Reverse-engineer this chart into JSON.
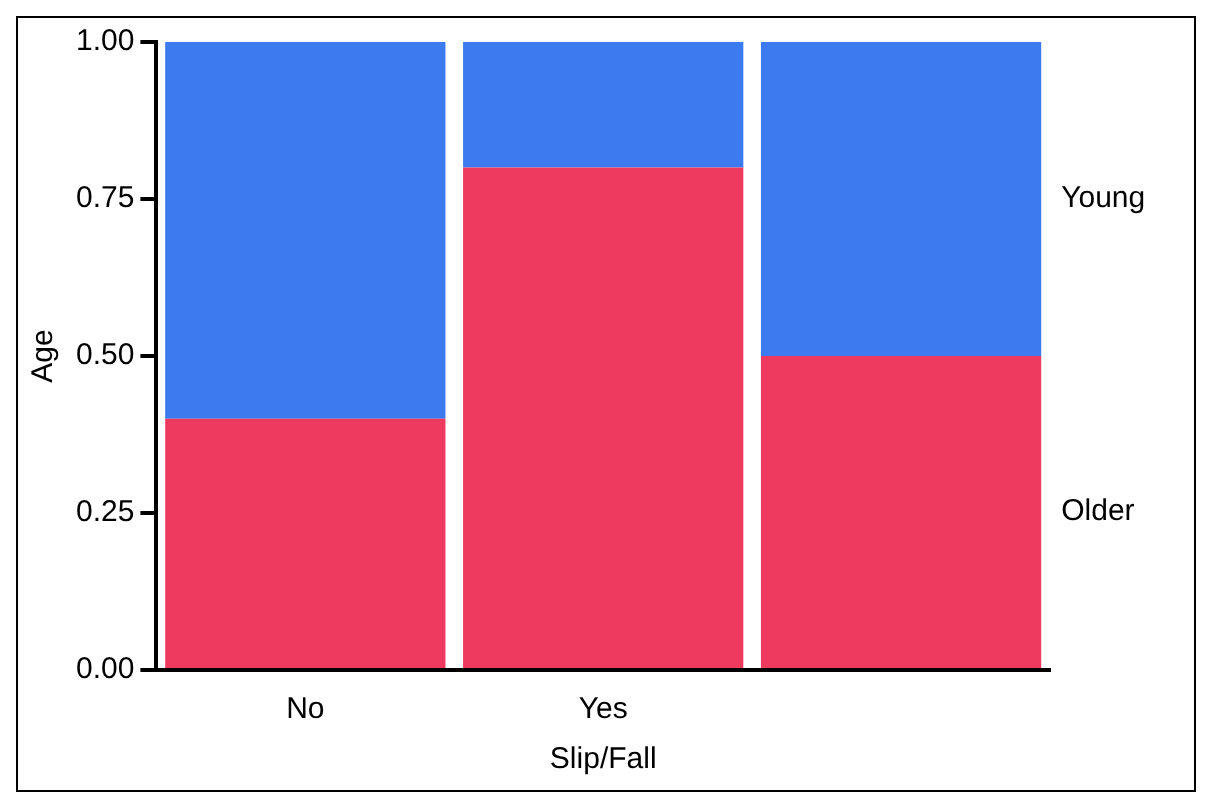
{
  "chart_data": {
    "type": "bar",
    "stacked": true,
    "xlabel": "Slip/Fall",
    "ylabel": "Age",
    "categories": [
      "No",
      "Yes",
      null
    ],
    "series": [
      {
        "name": "Older",
        "color": "#ee3a5e",
        "values": [
          0.4,
          0.8,
          0.5
        ]
      },
      {
        "name": "Young",
        "color": "#3b7bef",
        "values": [
          0.6,
          0.2,
          0.5
        ]
      }
    ],
    "ylim": [
      0,
      1
    ],
    "yticks": [
      {
        "value": 0,
        "label": "0.00"
      },
      {
        "value": 0.25,
        "label": "0.25"
      },
      {
        "value": 0.5,
        "label": "0.50"
      },
      {
        "value": 0.75,
        "label": "0.75"
      },
      {
        "value": 1,
        "label": "1.00"
      }
    ],
    "grid": false,
    "legend": false
  }
}
